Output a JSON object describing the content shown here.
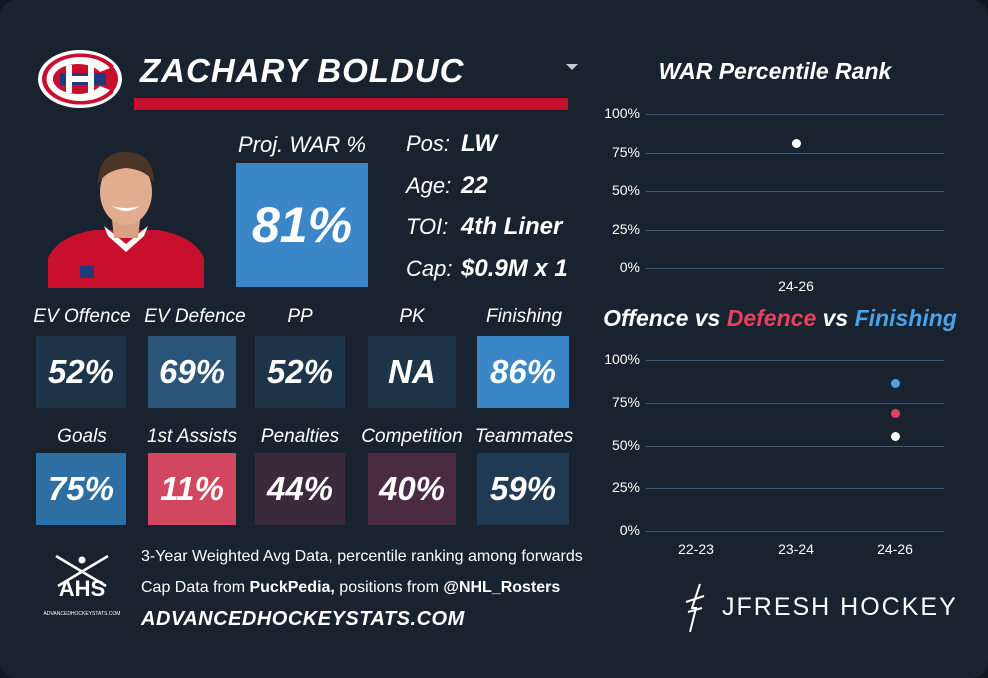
{
  "player": {
    "name": "ZACHARY BOLDUC",
    "war_label": "Proj. WAR %",
    "war_value": "81%",
    "info": [
      {
        "label": "Pos:",
        "value": "LW"
      },
      {
        "label": "Age:",
        "value": "22"
      },
      {
        "label": "TOI:",
        "value": "4th Liner"
      },
      {
        "label": "Cap:",
        "value": "$0.9M x 1"
      }
    ]
  },
  "tiles_row1": [
    {
      "label": "EV Offence",
      "value": "52%",
      "color": "#1e3448"
    },
    {
      "label": "EV Defence",
      "value": "69%",
      "color": "#2a5478"
    },
    {
      "label": "PP",
      "value": "52%",
      "color": "#1e3448"
    },
    {
      "label": "PK",
      "value": "NA",
      "color": "#1e3448"
    },
    {
      "label": "Finishing",
      "value": "86%",
      "color": "#3b86c6"
    }
  ],
  "tiles_row2": [
    {
      "label": "Goals",
      "value": "75%",
      "color": "#2d6ea3"
    },
    {
      "label": "1st Assists",
      "value": "11%",
      "color": "#d1475f"
    },
    {
      "label": "Penalties",
      "value": "44%",
      "color": "#3a2a3c"
    },
    {
      "label": "Competition",
      "value": "40%",
      "color": "#4a2b42"
    },
    {
      "label": "Teammates",
      "value": "59%",
      "color": "#1f3a52"
    }
  ],
  "footer": {
    "line1": "3-Year Weighted Avg Data, percentile ranking among forwards",
    "line2_prefix": "Cap Data from ",
    "line2_bold1": "PuckPedia,",
    "line2_mid": " positions from ",
    "line2_bold2": "@NHL_Rosters",
    "site": "ADVANCEDHOCKEYSTATS.COM",
    "ahs_logo_text": "AHS",
    "ahs_logo_sub": "ADVANCEDHOCKEYSTATS.COM"
  },
  "branding": {
    "jfresh": "JFRESH HOCKEY"
  },
  "colors": {
    "offence": "#ffffff",
    "defence": "#e8415f",
    "finishing": "#4aa3e8",
    "habs_red": "#c8102e",
    "habs_blue": "#1d3a7a"
  },
  "chart_data": [
    {
      "type": "scatter",
      "title": "WAR Percentile Rank",
      "categories": [
        "24-26"
      ],
      "yticks": [
        "100%",
        "75%",
        "50%",
        "25%",
        "0%"
      ],
      "ylim": [
        0,
        100
      ],
      "grid": true,
      "series": [
        {
          "values": [
            81
          ],
          "color": "#ffffff"
        }
      ]
    },
    {
      "type": "scatter",
      "title_parts": [
        {
          "text": "Offence",
          "color": "#ffffff"
        },
        {
          "text": " vs ",
          "color": "#ffffff"
        },
        {
          "text": "Defence",
          "color": "#e8415f"
        },
        {
          "text": " vs ",
          "color": "#ffffff"
        },
        {
          "text": "Finishing",
          "color": "#4aa3e8"
        }
      ],
      "categories": [
        "22-23",
        "23-24",
        "24-26"
      ],
      "yticks": [
        "100%",
        "75%",
        "50%",
        "25%",
        "0%"
      ],
      "ylim": [
        0,
        100
      ],
      "grid": true,
      "series": [
        {
          "values": [
            null,
            null,
            55
          ],
          "color": "#ffffff"
        },
        {
          "values": [
            null,
            null,
            69
          ],
          "color": "#e8415f"
        },
        {
          "values": [
            null,
            null,
            86
          ],
          "color": "#4aa3e8"
        }
      ]
    }
  ]
}
